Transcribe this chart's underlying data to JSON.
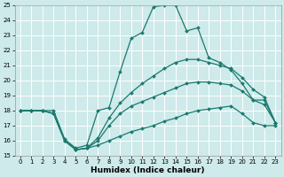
{
  "xlabel": "Humidex (Indice chaleur)",
  "xlim": [
    -0.5,
    23.5
  ],
  "ylim": [
    15,
    25
  ],
  "xticks": [
    0,
    1,
    2,
    3,
    4,
    5,
    6,
    7,
    8,
    9,
    10,
    11,
    12,
    13,
    14,
    15,
    16,
    17,
    18,
    19,
    20,
    21,
    22,
    23
  ],
  "yticks": [
    15,
    16,
    17,
    18,
    19,
    20,
    21,
    22,
    23,
    24,
    25
  ],
  "background_color": "#ceeaea",
  "grid_color": "#ffffff",
  "line_color": "#1a7a6e",
  "line1_y": [
    18,
    18,
    18,
    18,
    16.1,
    15.5,
    15.7,
    18.0,
    18.2,
    20.6,
    22.8,
    23.2,
    24.9,
    25.0,
    25.0,
    23.3,
    23.5,
    21.5,
    21.2,
    20.7,
    19.8,
    18.7,
    18.7,
    17.2
  ],
  "line2_y": [
    18,
    18,
    18,
    17.8,
    16.0,
    15.4,
    15.5,
    16.2,
    17.5,
    18.5,
    19.2,
    19.8,
    20.3,
    20.8,
    21.2,
    21.4,
    21.4,
    21.2,
    21.0,
    20.8,
    20.2,
    19.4,
    18.9,
    17.2
  ],
  "line3_y": [
    18,
    18,
    18,
    17.8,
    16.0,
    15.4,
    15.5,
    16.0,
    17.0,
    17.8,
    18.3,
    18.6,
    18.9,
    19.2,
    19.5,
    19.8,
    19.9,
    19.9,
    19.8,
    19.7,
    19.3,
    18.7,
    18.4,
    17.2
  ],
  "line4_y": [
    18,
    18,
    18,
    17.8,
    16.0,
    15.4,
    15.5,
    15.7,
    16.0,
    16.3,
    16.6,
    16.8,
    17.0,
    17.3,
    17.5,
    17.8,
    18.0,
    18.1,
    18.2,
    18.3,
    17.8,
    17.2,
    17.0,
    17.0
  ],
  "marker": "D",
  "markersize": 2.0,
  "linewidth": 0.9,
  "tick_labelsize": 5.0,
  "xlabel_fontsize": 6.5,
  "spine_color": "#999999"
}
